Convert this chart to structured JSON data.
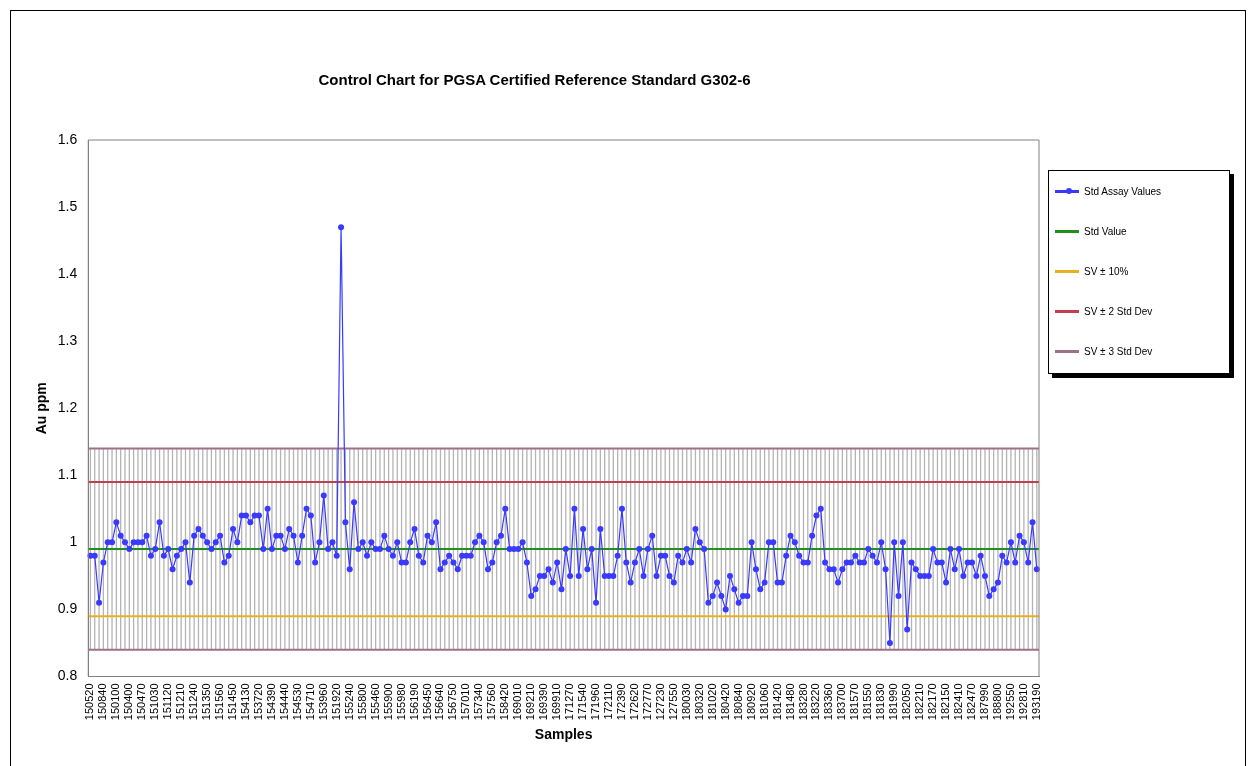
{
  "chart_data": {
    "type": "line",
    "title": "Control Chart for PGSA Certified Reference Standard G302-6",
    "xlabel": "Samples",
    "ylabel": "Au ppm",
    "categories": [
      "150520",
      null,
      null,
      "150840",
      null,
      null,
      "150100",
      null,
      null,
      "150400",
      null,
      null,
      "150470",
      null,
      null,
      "151030",
      null,
      null,
      "151120",
      null,
      null,
      "151210",
      null,
      null,
      "151240",
      null,
      null,
      "151350",
      null,
      null,
      "151560",
      null,
      null,
      "151450",
      null,
      null,
      "154130",
      null,
      null,
      "153720",
      null,
      null,
      "154390",
      null,
      null,
      "154440",
      null,
      null,
      "154530",
      null,
      null,
      "154710",
      null,
      null,
      "153960",
      null,
      null,
      "151920",
      null,
      null,
      "155240",
      null,
      null,
      "155800",
      null,
      null,
      "155460",
      null,
      null,
      "155900",
      null,
      null,
      "155980",
      null,
      null,
      "156190",
      null,
      null,
      "156450",
      null,
      null,
      "156640",
      null,
      null,
      "156750",
      null,
      null,
      "157010",
      null,
      null,
      "157340",
      null,
      null,
      "157560",
      null,
      null,
      "158420",
      null,
      null,
      "169010",
      null,
      null,
      "169210",
      null,
      null,
      "169390",
      null,
      null,
      "169910",
      null,
      null,
      "171270",
      null,
      null,
      "171540",
      null,
      null,
      "171960",
      null,
      null,
      "172110",
      null,
      null,
      "172390",
      null,
      null,
      "172620",
      null,
      null,
      "172770",
      null,
      null,
      "127230",
      null,
      null,
      "127550",
      null,
      null,
      "180030",
      null,
      null,
      "180320",
      null,
      null,
      "181020",
      null,
      null,
      "180420",
      null,
      null,
      "180840",
      null,
      null,
      "180920",
      null,
      null,
      "181060",
      null,
      null,
      "181420",
      null,
      null,
      "181480",
      null,
      null,
      "183280",
      null,
      null,
      "183220",
      null,
      null,
      "183360",
      null,
      null,
      "183700",
      null,
      null,
      "181570",
      null,
      null,
      "181550",
      null,
      null,
      "181830",
      null,
      null,
      "181990",
      null,
      null,
      "182050",
      null,
      null,
      "182210",
      null,
      null,
      "182170",
      null,
      null,
      "182150",
      null,
      null,
      "182410",
      null,
      null,
      "182470",
      null,
      null,
      "187990",
      null,
      null,
      "188800",
      null,
      null,
      "192550",
      null,
      null,
      "192810",
      null,
      null,
      "193190"
    ],
    "series": [
      {
        "name": "Std Assay Values",
        "color": "#3a3aff",
        "values": [
          0.98,
          0.98,
          0.91,
          0.97,
          1.0,
          1.0,
          1.03,
          1.01,
          1.0,
          0.99,
          1.0,
          1.0,
          1.0,
          1.01,
          0.98,
          0.99,
          1.03,
          0.98,
          0.99,
          0.96,
          0.98,
          0.99,
          1.0,
          0.94,
          1.01,
          1.02,
          1.01,
          1.0,
          0.99,
          1.0,
          1.01,
          0.97,
          0.98,
          1.02,
          1.0,
          1.04,
          1.04,
          1.03,
          1.04,
          1.04,
          0.99,
          1.05,
          0.99,
          1.01,
          1.01,
          0.99,
          1.02,
          1.01,
          0.97,
          1.01,
          1.05,
          1.04,
          0.97,
          1.0,
          1.07,
          0.99,
          1.0,
          0.98,
          1.47,
          1.03,
          0.96,
          1.06,
          0.99,
          1.0,
          0.98,
          1.0,
          0.99,
          0.99,
          1.01,
          0.99,
          0.98,
          1.0,
          0.97,
          0.97,
          1.0,
          1.02,
          0.98,
          0.97,
          1.01,
          1.0,
          1.03,
          0.96,
          0.97,
          0.98,
          0.97,
          0.96,
          0.98,
          0.98,
          0.98,
          1.0,
          1.01,
          1.0,
          0.96,
          0.97,
          1.0,
          1.01,
          1.05,
          0.99,
          0.99,
          0.99,
          1.0,
          0.97,
          0.92,
          0.93,
          0.95,
          0.95,
          0.96,
          0.94,
          0.97,
          0.93,
          0.99,
          0.95,
          1.05,
          0.95,
          1.02,
          0.96,
          0.99,
          0.91,
          1.02,
          0.95,
          0.95,
          0.95,
          0.98,
          1.05,
          0.97,
          0.94,
          0.97,
          0.99,
          0.95,
          0.99,
          1.01,
          0.95,
          0.98,
          0.98,
          0.95,
          0.94,
          0.98,
          0.97,
          0.99,
          0.97,
          1.02,
          1.0,
          0.99,
          0.91,
          0.92,
          0.94,
          0.92,
          0.9,
          0.95,
          0.93,
          0.91,
          0.92,
          0.92,
          1.0,
          0.96,
          0.93,
          0.94,
          1.0,
          1.0,
          0.94,
          0.94,
          0.98,
          1.01,
          1.0,
          0.98,
          0.97,
          0.97,
          1.01,
          1.04,
          1.05,
          0.97,
          0.96,
          0.96,
          0.94,
          0.96,
          0.97,
          0.97,
          0.98,
          0.97,
          0.97,
          0.99,
          0.98,
          0.97,
          1.0,
          0.96,
          0.85,
          1.0,
          0.92,
          1.0,
          0.87,
          0.97,
          0.96,
          0.95,
          0.95,
          0.95,
          0.99,
          0.97,
          0.97,
          0.94,
          0.99,
          0.96,
          0.99,
          0.95,
          0.97,
          0.97,
          0.95,
          0.98,
          0.95,
          0.92,
          0.93,
          0.94,
          0.98,
          0.97,
          1.0,
          0.97,
          1.01,
          1.0,
          0.97,
          1.03,
          0.96
        ]
      }
    ],
    "ref_lines": [
      {
        "axis": "y",
        "value": 0.99,
        "label": "Std Value",
        "color": "#1f8f1f"
      },
      {
        "axis": "y",
        "value": 0.89,
        "label": "SV ± 10%",
        "color": "#e8b020"
      },
      {
        "axis": "y",
        "value": 1.09,
        "label": "SV ± 2 Std Dev",
        "color": "#c04050"
      },
      {
        "axis": "y",
        "value": 1.14,
        "label": "SV ± 3 Std Dev",
        "color": "#a07088"
      },
      {
        "axis": "y",
        "value": 0.84,
        "label": null,
        "color": "#a07088"
      }
    ],
    "ylim": [
      0.8,
      1.6
    ],
    "yticks": [
      0.8,
      0.9,
      1,
      1.1,
      1.2,
      1.3,
      1.4,
      1.5,
      1.6
    ],
    "grid": false,
    "legend": "right",
    "marker": "circle",
    "line_style": "solid"
  }
}
